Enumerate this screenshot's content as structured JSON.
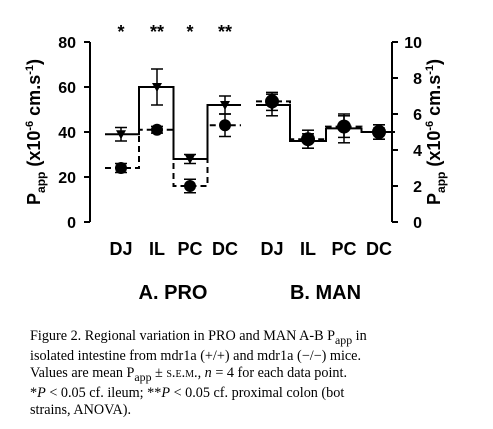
{
  "chart_data": [
    {
      "type": "line",
      "panel_label": "A. PRO",
      "categories": [
        "DJ",
        "IL",
        "PC",
        "DC"
      ],
      "ylabel_left": "P",
      "ylabel_left_sub": "app",
      "ylabel_left_rest": " (x10",
      "ylabel_left_exp": "-6",
      "ylabel_left_unit": " cm.s",
      "ylabel_left_unit_exp": "-1",
      "ylabel_left_close": ")",
      "ylim": [
        0,
        80
      ],
      "yticks": [
        "0",
        "20",
        "40",
        "60",
        "80"
      ],
      "significance": [
        "*",
        "**",
        "*",
        "**"
      ],
      "series": [
        {
          "values": [
            39,
            60,
            28,
            52
          ],
          "err": [
            3,
            8,
            2,
            4
          ],
          "marker": "triangle-down",
          "line": "solid-step"
        },
        {
          "values": [
            24,
            41,
            16,
            43
          ],
          "err": [
            2,
            1.5,
            3,
            5
          ],
          "marker": "circle",
          "line": "dashed-step"
        }
      ]
    },
    {
      "type": "line",
      "panel_label": "B. MAN",
      "categories": [
        "DJ",
        "IL",
        "PC",
        "DC"
      ],
      "ylabel_right": "P",
      "ylabel_right_sub": "app",
      "ylabel_right_rest": " (x10",
      "ylabel_right_exp": "-6",
      "ylabel_right_unit": " cm.s",
      "ylabel_right_unit_exp": "-1",
      "ylabel_right_close": ")",
      "ylim": [
        0,
        10
      ],
      "yticks": [
        "0",
        "2",
        "4",
        "6",
        "8",
        "10"
      ],
      "series": [
        {
          "values": [
            6.5,
            4.5,
            5.2,
            5.0
          ],
          "err": [
            0.6,
            0.4,
            0.8,
            0.4
          ],
          "marker": "triangle-down",
          "line": "solid-step"
        },
        {
          "values": [
            6.7,
            4.6,
            5.3,
            5.0
          ],
          "err": [
            0.5,
            0.5,
            0.6,
            0.4
          ],
          "marker": "circle",
          "line": "dashed-step"
        }
      ]
    }
  ],
  "caption": {
    "figure_label": "Figure 2.",
    "line1_a": " Regional variation in PRO and MAN A-B P",
    "line1_sub": "app",
    "line1_b": " in",
    "line2": "isolated intestine from mdr1a (+/+) and mdr1a (−/−) mice.",
    "line3_a": "Values are mean P",
    "line3_sub": "app",
    "line3_b": " ± ",
    "line3_sem": "s.e.m.",
    "line3_c": ", ",
    "line3_n": "n",
    "line3_d": " = 4 for each data point.",
    "line4_a": "*",
    "line4_p1": "P",
    "line4_b": " < 0.05 cf. ileum; **",
    "line4_p2": "P",
    "line4_c": " < 0.05 cf. proximal colon (bot",
    "line5": "strains, ANOVA)."
  }
}
